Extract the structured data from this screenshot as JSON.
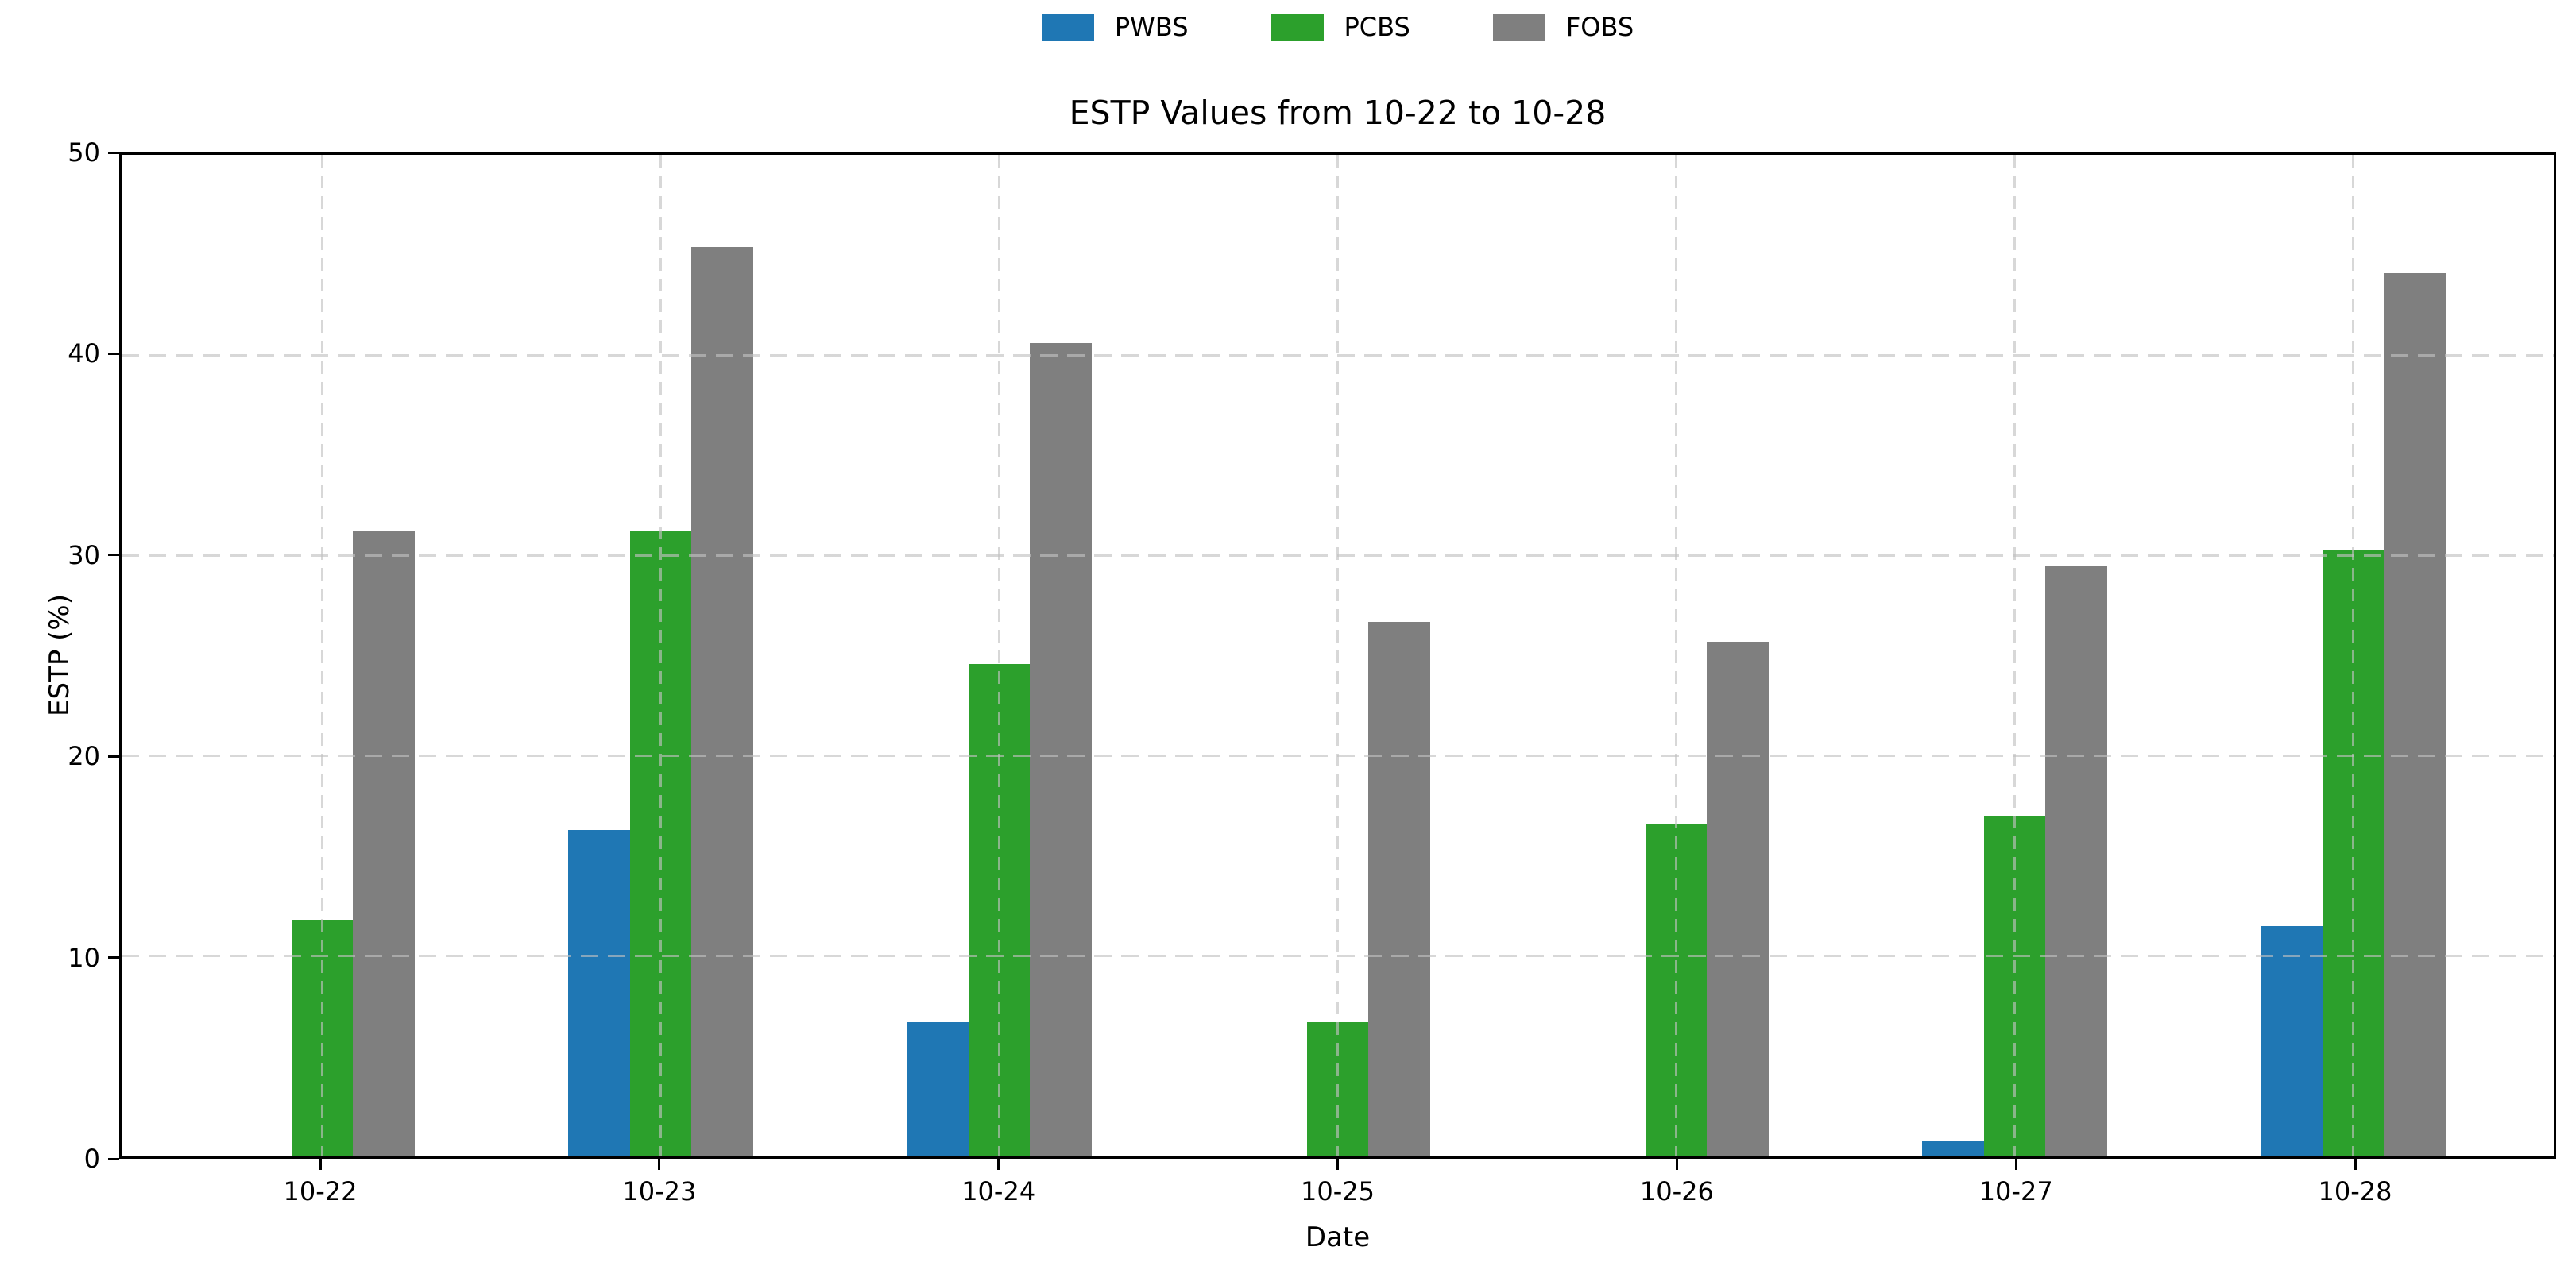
{
  "chart_data": {
    "type": "bar",
    "title": "ESTP Values from 10-22 to 10-28",
    "xlabel": "Date",
    "ylabel": "ESTP (%)",
    "categories": [
      "10-22",
      "10-23",
      "10-24",
      "10-25",
      "10-26",
      "10-27",
      "10-28"
    ],
    "series": [
      {
        "name": "PWBS",
        "color": "#1f77b4",
        "values": [
          0,
          16.3,
          6.7,
          0,
          0,
          0.8,
          11.5
        ]
      },
      {
        "name": "PCBS",
        "color": "#2ca02c",
        "values": [
          11.8,
          31.2,
          24.6,
          6.7,
          16.6,
          17.0,
          30.3
        ]
      },
      {
        "name": "FOBS",
        "color": "#7f7f7f",
        "values": [
          31.2,
          45.4,
          40.6,
          26.7,
          25.7,
          29.5,
          44.1
        ]
      }
    ],
    "ylim": [
      0,
      50
    ],
    "yticks": [
      0,
      10,
      20,
      30,
      40,
      50
    ],
    "grid": "dashed gridlines on both axes, drawn over bars",
    "legend_position": "top center, outside axes"
  }
}
